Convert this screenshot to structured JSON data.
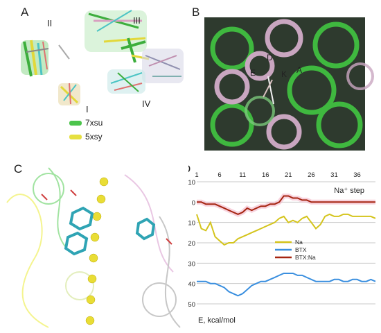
{
  "figure": {
    "panel_labels": [
      "A",
      "B",
      "C",
      "D"
    ],
    "panel_a": {
      "roman_labels": [
        "II",
        "III",
        "I",
        "IV"
      ],
      "legend": [
        {
          "label": "7xsu",
          "color": "#4cc44c"
        },
        {
          "label": "5xsy",
          "color": "#e6e040"
        }
      ]
    },
    "panel_b": {
      "labels": [
        "D",
        "E",
        "K",
        "A"
      ]
    },
    "panel_d": {
      "x_label": "Na⁺ step",
      "y_label": "E, kcal/mol",
      "x_ticks": [
        "1",
        "6",
        "11",
        "16",
        "21",
        "26",
        "31",
        "36"
      ],
      "y_ticks": [
        "10",
        "0",
        "-10",
        "-20",
        "-30",
        "-40",
        "-50"
      ]
    }
  },
  "chart_data": {
    "type": "line",
    "x_label": "Na⁺ step",
    "y_label": "E, kcal/mol",
    "xlim": [
      1,
      40
    ],
    "ylim": [
      -50,
      10
    ],
    "grid": true,
    "legend_position": "center-right",
    "series": [
      {
        "name": "Na",
        "color": "#d4c41c",
        "x": [
          1,
          2,
          3,
          4,
          5,
          6,
          7,
          8,
          9,
          10,
          11,
          12,
          13,
          14,
          15,
          16,
          17,
          18,
          19,
          20,
          21,
          22,
          23,
          24,
          25,
          26,
          27,
          28,
          29,
          30,
          31,
          32,
          33,
          34,
          35,
          36,
          37,
          38,
          39,
          40
        ],
        "y": [
          -6,
          -13,
          -14,
          -10,
          -17,
          -19,
          -21,
          -20,
          -20,
          -18,
          -17,
          -16,
          -15,
          -14,
          -13,
          -12,
          -11,
          -10,
          -8,
          -7,
          -10,
          -9,
          -10,
          -8,
          -7,
          -10,
          -13,
          -11,
          -7,
          -6,
          -7,
          -7,
          -6,
          -6,
          -7,
          -7,
          -7,
          -7,
          -7,
          -8
        ]
      },
      {
        "name": "BTX",
        "color": "#3a8fdf",
        "x": [
          1,
          2,
          3,
          4,
          5,
          6,
          7,
          8,
          9,
          10,
          11,
          12,
          13,
          14,
          15,
          16,
          17,
          18,
          19,
          20,
          21,
          22,
          23,
          24,
          25,
          26,
          27,
          28,
          29,
          30,
          31,
          32,
          33,
          34,
          35,
          36,
          37,
          38,
          39,
          40
        ],
        "y": [
          -39,
          -39,
          -39,
          -40,
          -40,
          -41,
          -42,
          -44,
          -45,
          -46,
          -45,
          -43,
          -41,
          -40,
          -39,
          -39,
          -38,
          -37,
          -36,
          -35,
          -35,
          -35,
          -36,
          -36,
          -37,
          -38,
          -39,
          -39,
          -39,
          -39,
          -38,
          -38,
          -39,
          -39,
          -38,
          -38,
          -39,
          -39,
          -38,
          -39
        ]
      },
      {
        "name": "BTX:Na",
        "color": "#a52410",
        "x": [
          1,
          2,
          3,
          4,
          5,
          6,
          7,
          8,
          9,
          10,
          11,
          12,
          13,
          14,
          15,
          16,
          17,
          18,
          19,
          20,
          21,
          22,
          23,
          24,
          25,
          26,
          27,
          28,
          29,
          30,
          31,
          32,
          33,
          34,
          35,
          36,
          37,
          38,
          39,
          40
        ],
        "y": [
          0,
          0,
          -1,
          -1,
          -1,
          -2,
          -3,
          -4,
          -5,
          -6,
          -5,
          -3,
          -4,
          -3,
          -2,
          -2,
          -1,
          -1,
          0,
          3,
          3,
          2,
          2,
          1,
          1,
          0,
          0,
          0,
          0,
          0,
          0,
          0,
          0,
          0,
          0,
          0,
          0,
          0,
          0,
          0
        ]
      }
    ]
  }
}
